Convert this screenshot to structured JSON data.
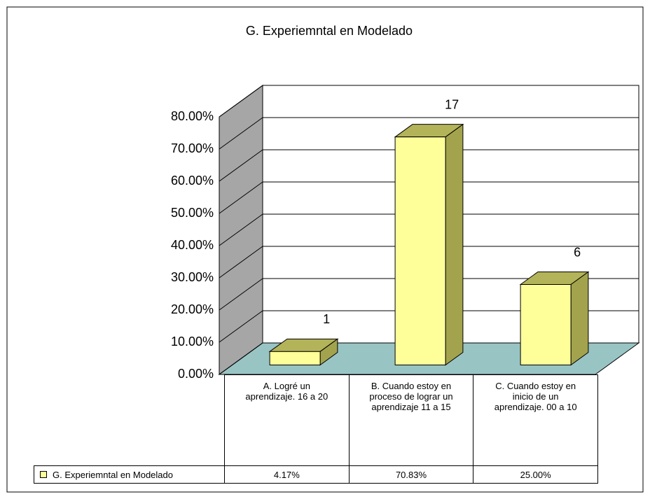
{
  "chart_data": {
    "type": "bar3d",
    "title": "G. Experiemntal en Modelado",
    "categories": [
      "A. Logré un aprendizaje. 16 a 20",
      "B. Cuando estoy en proceso de lograr un aprendizaje 11 a 15",
      "C. Cuando estoy en inicio de un aprendizaje. 00 a 10"
    ],
    "series": [
      {
        "name": "G. Experiemntal en Modelado",
        "color": "#ffff99",
        "values": [
          4.17,
          70.83,
          25.0
        ],
        "value_labels": [
          "4.17%",
          "70.83%",
          "25.00%"
        ],
        "counts": [
          1,
          17,
          6
        ]
      }
    ],
    "ylim": [
      0,
      80
    ],
    "yticks": [
      {
        "value": 0,
        "label": "0.00%"
      },
      {
        "value": 10,
        "label": "10.00%"
      },
      {
        "value": 20,
        "label": "20.00%"
      },
      {
        "value": 30,
        "label": "30.00%"
      },
      {
        "value": 40,
        "label": "40.00%"
      },
      {
        "value": 50,
        "label": "50.00%"
      },
      {
        "value": 60,
        "label": "60.00%"
      },
      {
        "value": 70,
        "label": "70.00%"
      },
      {
        "value": 80,
        "label": "80.00%"
      }
    ],
    "grid": true,
    "legend": "table"
  }
}
